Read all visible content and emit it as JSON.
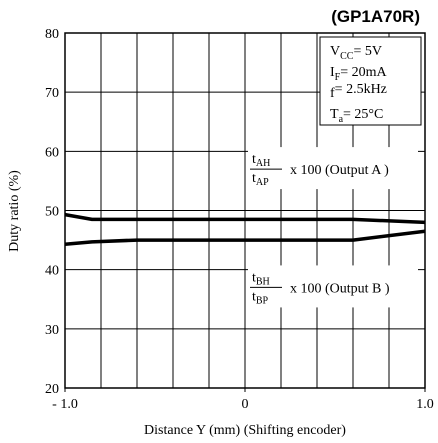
{
  "chart_data": {
    "type": "line",
    "subtitle": "(GP1A70R)",
    "ylabel": "Duty ratio (%)",
    "xlabel": "Distance Y (mm) (Shifting encoder)",
    "x": [
      -1.0,
      -0.85,
      -0.6,
      0,
      0.6,
      1.0
    ],
    "series": [
      {
        "color": "#000000",
        "values": [
          49.3,
          48.5,
          48.5,
          48.5,
          48.5,
          48.0
        ]
      },
      {
        "color": "#000000",
        "values": [
          44.3,
          44.7,
          45.0,
          45.0,
          45.0,
          46.5
        ]
      }
    ],
    "xlim": [
      -1.0,
      1.0
    ],
    "xticks": [
      {
        "value": -1.0,
        "label": "- 1.0"
      },
      0,
      {
        "value": 1.0,
        "label": "1.0"
      }
    ],
    "xgrid": [
      -0.8,
      -0.6,
      -0.4,
      -0.2,
      0,
      0.2,
      0.4,
      0.6,
      0.8
    ],
    "ylim": [
      20,
      80
    ],
    "yticks": [
      20,
      30,
      40,
      50,
      60,
      70,
      80
    ],
    "grid": true,
    "conditions": [
      {
        "symbol": "V",
        "sub": "CC",
        "text": "= 5V"
      },
      {
        "symbol": "I",
        "sub": "F",
        "text": "= 20mA"
      },
      {
        "symbol": "f",
        "sub": "",
        "text": "= 2.5kHz"
      },
      {
        "symbol": "T",
        "sub": "a",
        "text": "= 25°C"
      }
    ],
    "annotations": [
      {
        "numerator": "t",
        "num_sub": "AH",
        "denominator": "t",
        "den_sub": "AP",
        "text": "x 100 (Output A )"
      },
      {
        "numerator": "t",
        "num_sub": "BH",
        "denominator": "t",
        "den_sub": "BP",
        "text": "x 100 (Output B )"
      }
    ]
  }
}
